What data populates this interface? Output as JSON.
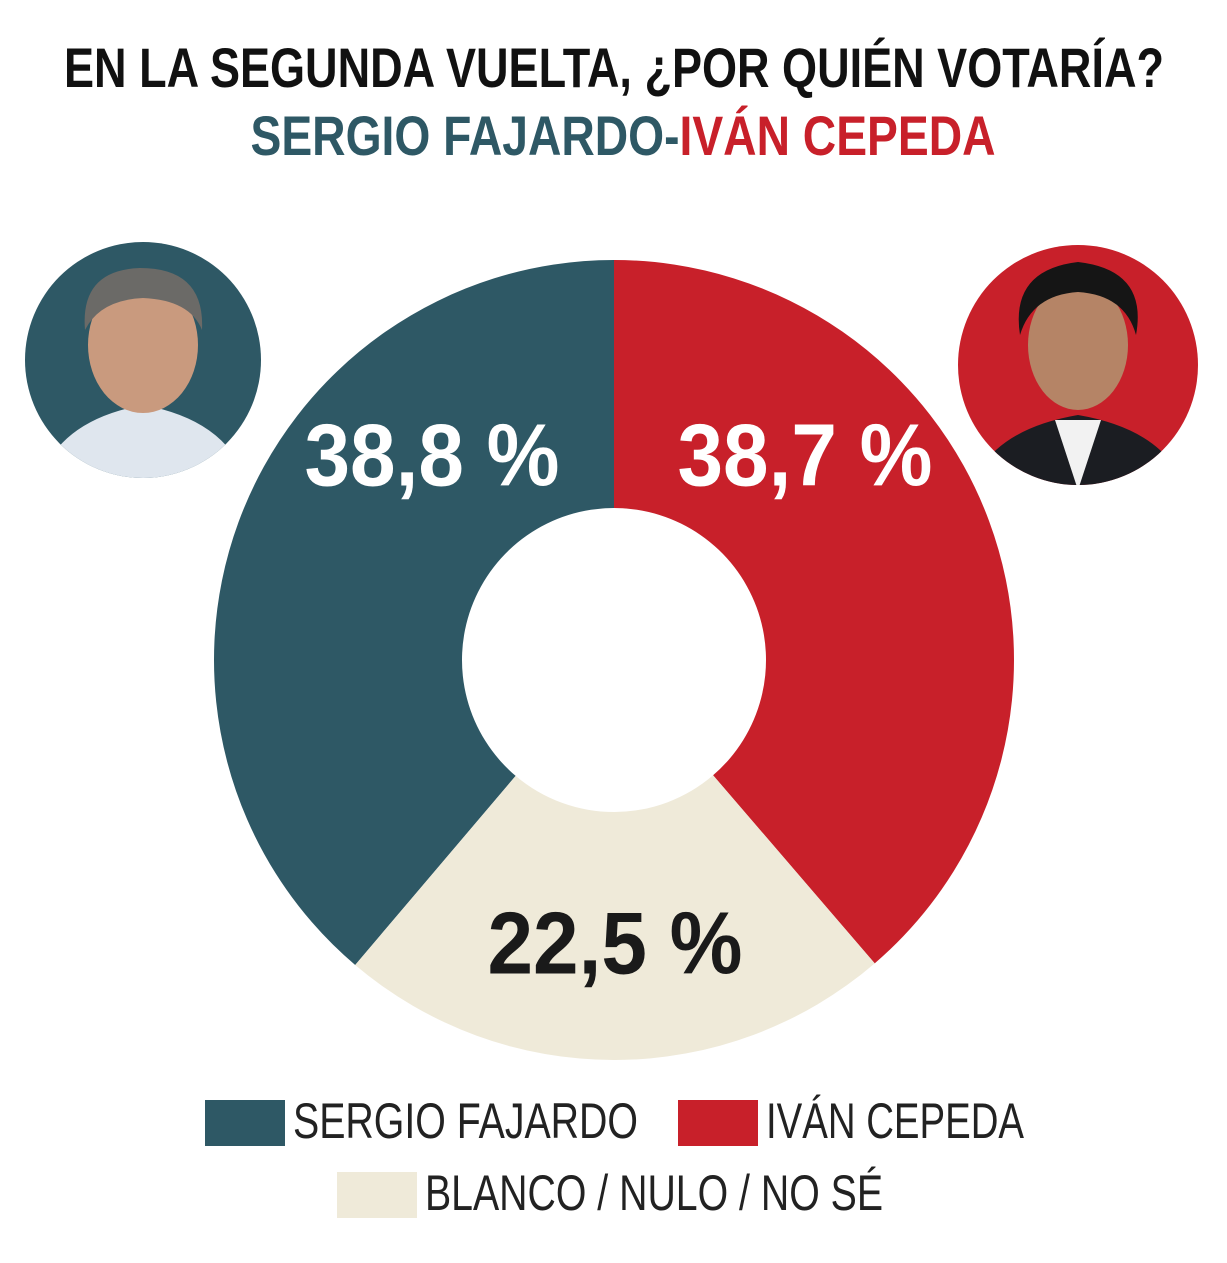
{
  "chart_data": {
    "type": "donut",
    "title": "EN LA SEGUNDA VUELTA, ¿POR QUIÉN VOTARÍA?",
    "subtitle_parts": [
      {
        "text": "SERGIO FAJARDO",
        "color": "#2e5865"
      },
      {
        "text": "-",
        "color": "#2e5865"
      },
      {
        "text": "IVÁN CEPEDA",
        "color": "#c8202a"
      }
    ],
    "categories": [
      "SERGIO FAJARDO",
      "IVÁN CEPEDA",
      "BLANCO / NULO / NO SÉ"
    ],
    "values": [
      38.8,
      38.7,
      22.5
    ],
    "value_labels": [
      "38,8 %",
      "38,7 %",
      "22,5 %"
    ],
    "colors": [
      "#2e5865",
      "#c8202a",
      "#efead9"
    ],
    "label_colors": [
      "#ffffff",
      "#ffffff",
      "#1a1a1a"
    ]
  }
}
